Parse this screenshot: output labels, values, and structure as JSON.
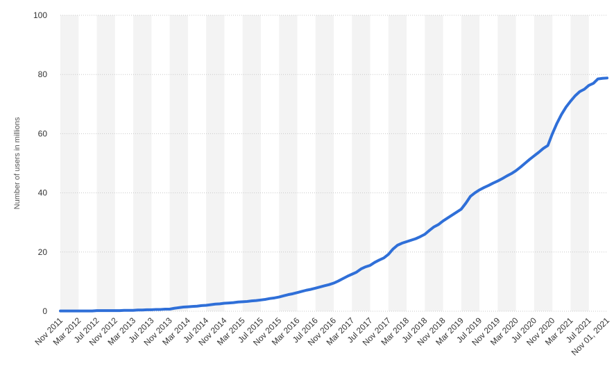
{
  "chart_data": {
    "type": "line",
    "y_label": "Number of users in millions",
    "categories": [
      "Nov 2011",
      null,
      null,
      null,
      "Mar 2012",
      null,
      null,
      null,
      "Jul 2012",
      null,
      null,
      null,
      "Nov 2012",
      null,
      null,
      null,
      "Mar 2013",
      null,
      null,
      null,
      "Jul 2013",
      null,
      null,
      null,
      "Nov 2013",
      null,
      null,
      null,
      "Mar 2014",
      null,
      null,
      null,
      "Jul 2014",
      null,
      null,
      null,
      "Nov 2014",
      null,
      null,
      null,
      "Mar 2015",
      null,
      null,
      null,
      "Jul 2015",
      null,
      null,
      null,
      "Nov 2015",
      null,
      null,
      null,
      "Mar 2016",
      null,
      null,
      null,
      "Jul 2016",
      null,
      null,
      null,
      "Nov 2016",
      null,
      null,
      null,
      "Mar 2017",
      null,
      null,
      null,
      "Jul 2017",
      null,
      null,
      null,
      "Nov 2017",
      null,
      null,
      null,
      "Mar 2018",
      null,
      null,
      null,
      "Jul 2018",
      null,
      null,
      null,
      "Nov 2018",
      null,
      null,
      null,
      "Mar 2019",
      null,
      null,
      null,
      "Jul 2019",
      null,
      null,
      null,
      "Nov 2019",
      null,
      null,
      null,
      "Mar 2020",
      null,
      null,
      null,
      "Jul 2020",
      null,
      null,
      null,
      "Nov 2020",
      null,
      null,
      null,
      "Mar 2021",
      null,
      null,
      null,
      "Jul 2021",
      null,
      null,
      null,
      "Nov 01, 2021"
    ],
    "values": [
      0.1,
      0.1,
      0.1,
      0.1,
      0.1,
      0.1,
      0.1,
      0.1,
      0.2,
      0.2,
      0.2,
      0.2,
      0.2,
      0.2,
      0.3,
      0.3,
      0.3,
      0.4,
      0.4,
      0.5,
      0.5,
      0.6,
      0.6,
      0.7,
      0.7,
      1.0,
      1.2,
      1.4,
      1.5,
      1.6,
      1.7,
      1.9,
      2.0,
      2.2,
      2.4,
      2.5,
      2.7,
      2.8,
      2.9,
      3.1,
      3.2,
      3.3,
      3.5,
      3.6,
      3.8,
      4.0,
      4.3,
      4.5,
      4.8,
      5.2,
      5.6,
      5.9,
      6.3,
      6.7,
      7.1,
      7.4,
      7.8,
      8.2,
      8.6,
      9.0,
      9.5,
      10.2,
      11.0,
      11.8,
      12.5,
      13.2,
      14.3,
      15.0,
      15.5,
      16.5,
      17.3,
      18.0,
      19.2,
      21.0,
      22.3,
      23.0,
      23.5,
      24.0,
      24.5,
      25.2,
      26.0,
      27.3,
      28.5,
      29.3,
      30.5,
      31.5,
      32.5,
      33.5,
      34.5,
      36.5,
      38.8,
      40.0,
      41.0,
      41.8,
      42.5,
      43.3,
      44.0,
      44.8,
      45.7,
      46.5,
      47.5,
      48.7,
      50.0,
      51.3,
      52.5,
      53.7,
      55.0,
      56.0,
      60.0,
      63.5,
      66.5,
      69.0,
      71.0,
      72.8,
      74.2,
      75.0,
      76.3,
      77.0,
      78.5,
      78.7,
      78.8
    ],
    "color": "#2f6fd8",
    "ylim": [
      0,
      100
    ],
    "yticks": [
      0,
      20,
      40,
      60,
      80,
      100
    ],
    "grid": true
  }
}
